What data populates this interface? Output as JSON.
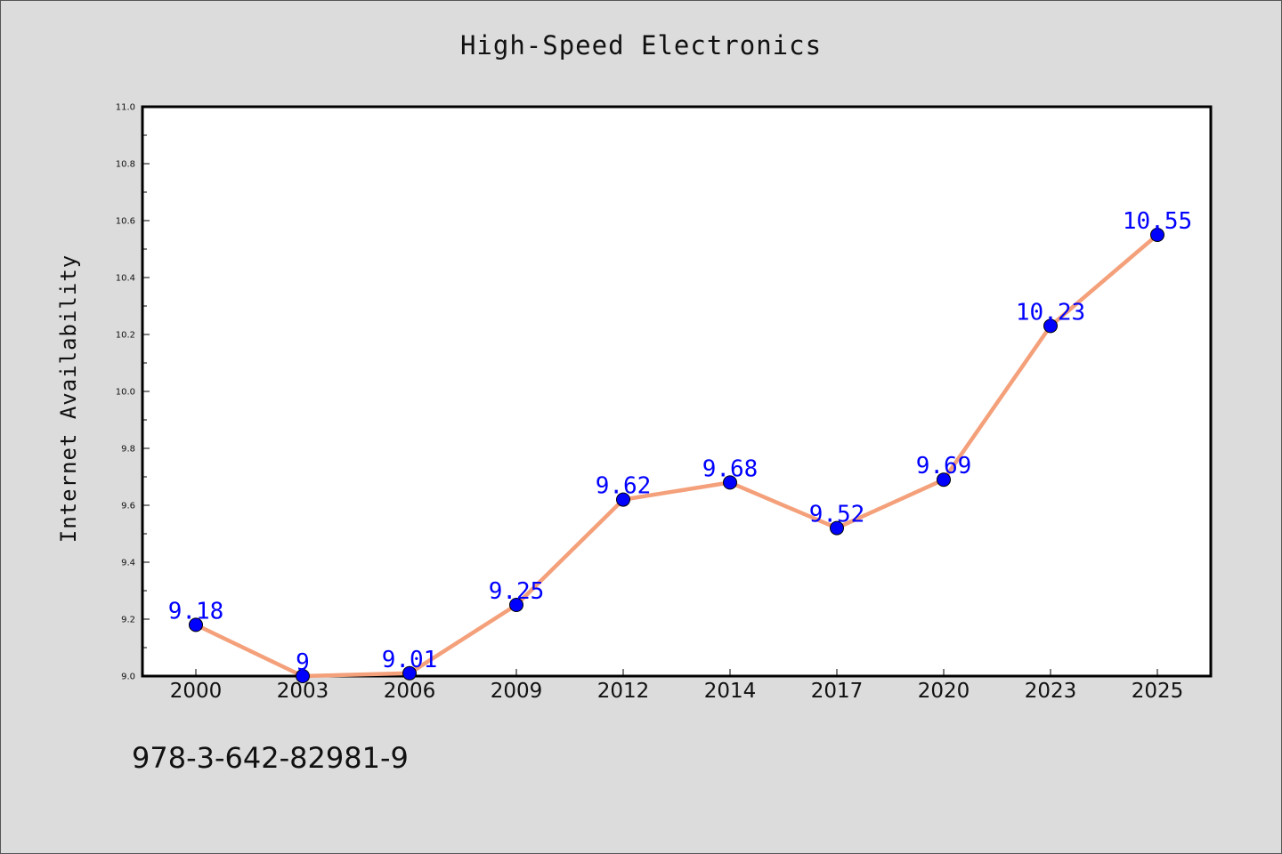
{
  "chart_data": {
    "type": "line",
    "title": "High-Speed Electronics",
    "xlabel": "",
    "ylabel": "Internet Availability",
    "categories": [
      "2000",
      "2003",
      "2006",
      "2009",
      "2012",
      "2014",
      "2017",
      "2020",
      "2023",
      "2025"
    ],
    "series": [
      {
        "name": "",
        "values": [
          9.18,
          9.0,
          9.01,
          9.25,
          9.62,
          9.68,
          9.52,
          9.69,
          10.23,
          10.55
        ],
        "data_labels": [
          "9.18",
          "9",
          "9.01",
          "9.25",
          "9.62",
          "9.68",
          "9.52",
          "9.69",
          "10.23",
          "10.55"
        ]
      }
    ],
    "ylim": [
      9.0,
      11.0
    ],
    "yticks": [
      "9.0",
      "9.2",
      "9.4",
      "9.6",
      "9.8",
      "10.0",
      "10.2",
      "10.4",
      "10.6",
      "10.8",
      "11.0"
    ],
    "grid": false,
    "colors": {
      "line": "#f4a07a",
      "marker": "#0000ff",
      "marker_edge": "#000000",
      "data_label": "#0000ff",
      "background": "#dcdcdc",
      "plot_background": "#ffffff"
    }
  },
  "footer": {
    "code": "978-3-642-82981-9"
  }
}
